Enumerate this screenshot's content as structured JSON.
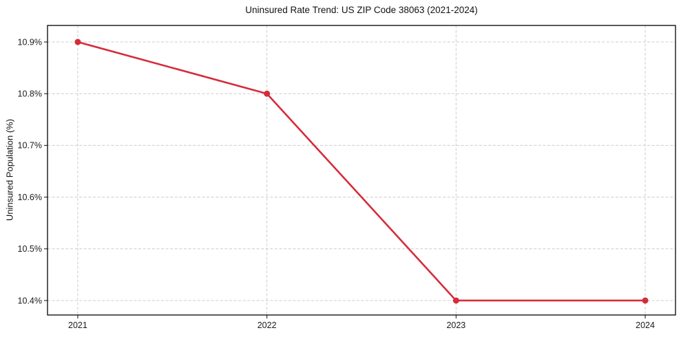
{
  "chart_data": {
    "type": "line",
    "title": "Uninsured Rate Trend: US ZIP Code 38063 (2021-2024)",
    "xlabel": "",
    "ylabel": "Uninsured Population (%)",
    "x": [
      2021,
      2022,
      2023,
      2024
    ],
    "x_ticks": [
      "2021",
      "2022",
      "2023",
      "2024"
    ],
    "y_tick_values": [
      10.4,
      10.5,
      10.6,
      10.7,
      10.8,
      10.9
    ],
    "y_ticks": [
      "10.4%",
      "10.5%",
      "10.6%",
      "10.7%",
      "10.8%",
      "10.9%"
    ],
    "series": [
      {
        "name": "Uninsured Population (%)",
        "values": [
          10.9,
          10.8,
          10.4,
          10.4
        ],
        "color": "#d62b3a",
        "marker": "circle"
      }
    ],
    "xlim": [
      2020.84,
      2024.16
    ],
    "ylim": [
      10.372,
      10.932
    ],
    "grid": true,
    "grid_style": "dashed",
    "grid_color": "#cccccc",
    "spine_color": "#000000",
    "text_color": "#191919",
    "background": "#ffffff",
    "legend": "none"
  }
}
